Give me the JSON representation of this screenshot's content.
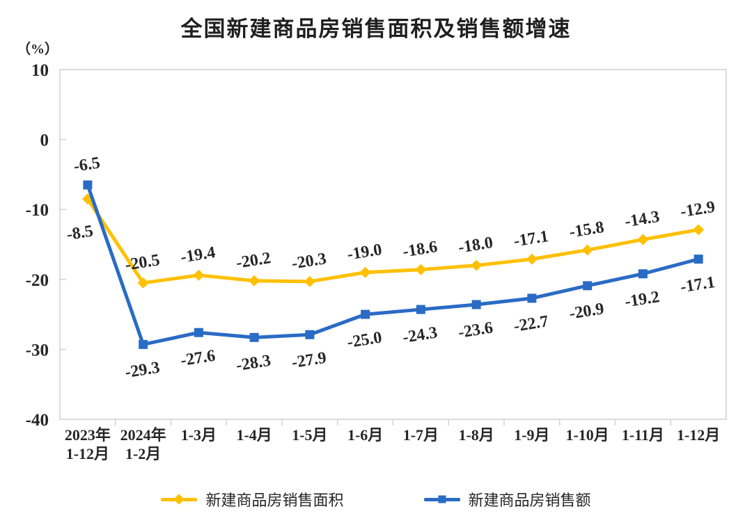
{
  "chart_data": {
    "type": "line",
    "title": "全国新建商品房销售面积及销售额增速",
    "unit_label": "（%）",
    "ylabel": "%",
    "ylim": [
      -40,
      10
    ],
    "yticks": [
      10,
      0,
      -10,
      -20,
      -30,
      -40
    ],
    "grid": false,
    "legend_position": "bottom",
    "background_color": "#ffffff",
    "axis_color": "#d4d4d4",
    "label_color": "#262626",
    "categories": [
      [
        "2023年",
        "1-12月"
      ],
      [
        "2024年",
        "1-2月"
      ],
      [
        "1-3月"
      ],
      [
        "1-4月"
      ],
      [
        "1-5月"
      ],
      [
        "1-6月"
      ],
      [
        "1-7月"
      ],
      [
        "1-8月"
      ],
      [
        "1-9月"
      ],
      [
        "1-10月"
      ],
      [
        "1-11月"
      ],
      [
        "1-12月"
      ]
    ],
    "series": [
      {
        "name": "新建商品房销售面积",
        "color": "#FFC000",
        "marker": "diamond",
        "values": [
          -8.5,
          -20.5,
          -19.4,
          -20.2,
          -20.3,
          -19.0,
          -18.6,
          -18.0,
          -17.1,
          -15.8,
          -14.3,
          -12.9
        ],
        "label_sides": [
          "below-left",
          "above",
          "above",
          "above",
          "above",
          "above",
          "above",
          "above",
          "above",
          "above",
          "above",
          "above"
        ]
      },
      {
        "name": "新建商品房销售额",
        "color": "#2A6BC5",
        "marker": "square",
        "values": [
          -6.5,
          -29.3,
          -27.6,
          -28.3,
          -27.9,
          -25.0,
          -24.3,
          -23.6,
          -22.7,
          -20.9,
          -19.2,
          -17.1
        ],
        "label_sides": [
          "above",
          "below",
          "below",
          "below",
          "below",
          "below",
          "below",
          "below",
          "below",
          "below",
          "below",
          "below"
        ]
      }
    ]
  }
}
